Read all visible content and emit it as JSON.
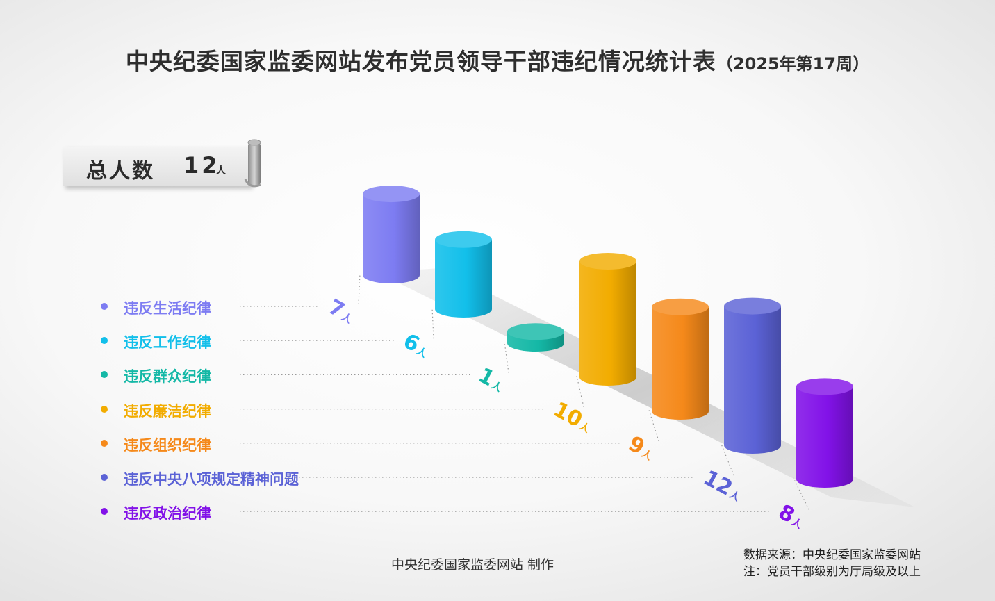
{
  "title": {
    "main": "中央纪委国家监委网站发布党员领导干部违纪情况统计表",
    "sub": "（2025年第17周）"
  },
  "total": {
    "label": "总人数",
    "value": "12",
    "unit": "人"
  },
  "chart_data": {
    "type": "bar",
    "title": "中央纪委国家监委网站发布党员领导干部违纪情况统计表（2025年第17周）",
    "unit": "人",
    "categories": [
      "违反生活纪律",
      "违反工作纪律",
      "违反群众纪律",
      "违反廉洁纪律",
      "违反组织纪律",
      "违反中央八项规定精神问题",
      "违反政治纪律"
    ],
    "values": [
      7,
      6,
      1,
      10,
      9,
      12,
      8
    ],
    "colors": [
      "#7d7cf2",
      "#12bfea",
      "#14b8a6",
      "#f2ac00",
      "#f5891a",
      "#5b62d6",
      "#8212e8"
    ],
    "grid": false
  },
  "footer": {
    "credit": "中央纪委国家监委网站 制作",
    "source": "数据来源：中央纪委国家监委网站",
    "note": "注：党员干部级别为厅局级及以上"
  }
}
